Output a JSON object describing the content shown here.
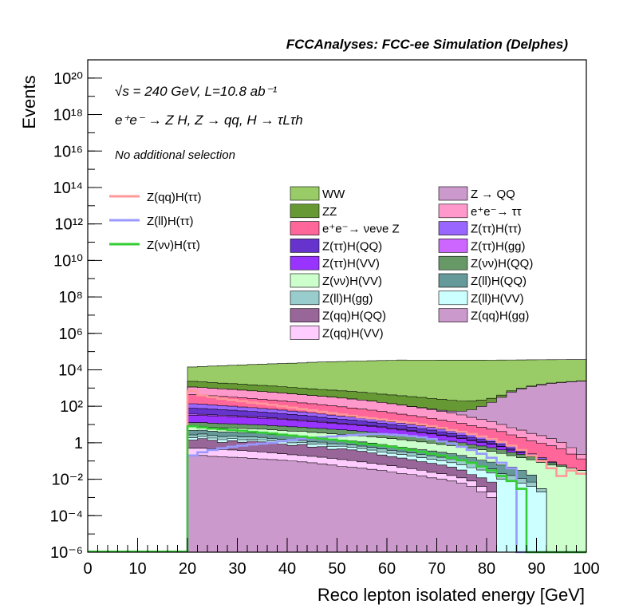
{
  "header": "FCCAnalyses: FCC-ee Simulation (Delphes)",
  "labels": {
    "energy_lumi": "√s = 240 GeV, L=10.8 ab⁻¹",
    "process": "e⁺e⁻ → Z H, Z → qq, H → τLτh",
    "selection": "No additional selection"
  },
  "chart_data": {
    "type": "stacked-histogram",
    "xlabel": "Reco lepton isolated energy [GeV]",
    "ylabel": "Events",
    "xlim": [
      0,
      100
    ],
    "ylim": [
      1e-06,
      1e+21
    ],
    "yscale": "log",
    "x_ticks": [
      0,
      10,
      20,
      30,
      40,
      50,
      60,
      70,
      80,
      90,
      100
    ],
    "y_ticks": [
      "10⁻⁶",
      "10⁻⁴",
      "10⁻²",
      "1",
      "10²",
      "10⁴",
      "10⁶",
      "10⁸",
      "10¹⁰",
      "10¹²",
      "10¹⁴",
      "10¹⁶",
      "10¹⁸",
      "10²⁰"
    ],
    "y_tick_values": [
      1e-06,
      0.0001,
      0.01,
      1,
      100.0,
      10000.0,
      1000000.0,
      100000000.0,
      10000000000.0,
      1000000000000.0,
      100000000000000.0,
      1e+16,
      1e+18,
      1e+20
    ],
    "bin_width": 2,
    "x_start": 20,
    "stack_layers": [
      {
        "name": "WW",
        "color": "#99cc66",
        "values": [
          12000.0,
          13000.0,
          14000.0,
          15000.0,
          16000.0,
          17000.0,
          18000.0,
          19000.0,
          20000.0,
          21000.0,
          22000.0,
          23000.0,
          25000.0,
          26000.0,
          27000.0,
          28000.0,
          29000.0,
          30000.0,
          31000.0,
          32000.0,
          33000.0,
          34000.0,
          34000.0,
          34000.0,
          34000.0,
          34000.0,
          34000.0,
          34000.0,
          34000.0,
          34000.0,
          34000.0,
          34000.0,
          34000.0,
          34000.0,
          34000.0,
          34000.0,
          34000.0,
          34000.0,
          34000.0,
          34000.0
        ]
      },
      {
        "name": "ZZ",
        "color": "#669933",
        "values": [
          1200.0,
          1100.0,
          1000.0,
          950,
          900,
          850,
          800,
          750,
          700,
          650,
          600,
          560,
          520,
          480,
          450,
          420,
          390,
          360,
          330,
          300,
          280,
          260,
          240,
          220,
          200,
          180,
          160,
          140,
          130,
          120,
          110,
          100,
          95,
          90,
          85,
          80,
          75,
          70,
          65,
          60
        ]
      },
      {
        "name": "Z → QQ",
        "color": "#cc99cc",
        "values": [
          2,
          2,
          2,
          2,
          2,
          2,
          2,
          2,
          2,
          2,
          2,
          2,
          2,
          2,
          2,
          2,
          2,
          2,
          2,
          2,
          2,
          2,
          3,
          4,
          5,
          8,
          12,
          20,
          40,
          80,
          150,
          300,
          600,
          900,
          1200,
          1500,
          1800,
          2000,
          2200,
          2400
        ]
      },
      {
        "name": "e⁺e⁻→ ττ",
        "color": "#ff99cc",
        "values": [
          700,
          650,
          600,
          560,
          520,
          480,
          440,
          400,
          370,
          340,
          310,
          280,
          250,
          230,
          210,
          190,
          170,
          150,
          130,
          110,
          95,
          80,
          65,
          55,
          45,
          35,
          28,
          22,
          16,
          12,
          9,
          6,
          4,
          3,
          2,
          1.5,
          1,
          0.6,
          0.3,
          0.1
        ]
      },
      {
        "name": "e⁺e⁻→ νeνe Z",
        "color": "#ff6699",
        "values": [
          300,
          280,
          260,
          240,
          220,
          200,
          180,
          165,
          150,
          135,
          120,
          105,
          95,
          85,
          75,
          65,
          55,
          48,
          42,
          36,
          30,
          25,
          21,
          18,
          15,
          12,
          10,
          8,
          6,
          5,
          4,
          3,
          2,
          1.5,
          1,
          0.8,
          0.6,
          0.4,
          0.2,
          0.1
        ]
      },
      {
        "name": "Z(ττ)H(ττ)",
        "color": "#9966ff",
        "values": [
          60,
          55,
          50,
          45,
          40,
          36,
          32,
          28,
          25,
          22,
          19,
          17,
          15,
          13,
          11,
          9,
          8,
          7,
          6,
          5,
          4,
          3.5,
          3,
          2.5,
          2,
          1.6,
          1.2,
          1,
          0.8,
          0.6,
          0.4,
          0.3,
          0.2,
          0.1,
          0.05,
          0.03,
          0.01,
          0,
          0,
          0
        ]
      },
      {
        "name": "Z(ττ)H(QQ)",
        "color": "#6633cc",
        "values": [
          40,
          38,
          35,
          32,
          30,
          27,
          25,
          22,
          20,
          18,
          16,
          14,
          12,
          10,
          9,
          8,
          7,
          6,
          5,
          4,
          3.5,
          3,
          2.5,
          2,
          1.6,
          1.3,
          1,
          0.8,
          0.6,
          0.4,
          0.3,
          0.2,
          0.1,
          0.05,
          0.02,
          0,
          0,
          0,
          0,
          0
        ]
      },
      {
        "name": "Z(ττ)H(gg)",
        "color": "#cc66ff",
        "values": [
          5,
          4.8,
          4.5,
          4.2,
          4,
          3.7,
          3.4,
          3.1,
          2.8,
          2.5,
          2.2,
          2,
          1.8,
          1.6,
          1.4,
          1.2,
          1,
          0.9,
          0.8,
          0.7,
          0.6,
          0.5,
          0.4,
          0.3,
          0.25,
          0.2,
          0.15,
          0.1,
          0.08,
          0.06,
          0.04,
          0.02,
          0.01,
          0,
          0,
          0,
          0,
          0,
          0,
          0
        ]
      },
      {
        "name": "Z(ττ)H(VV)",
        "color": "#9933ff",
        "values": [
          20,
          19,
          18,
          17,
          16,
          15,
          14,
          13,
          12,
          11,
          10,
          9,
          8,
          7,
          6,
          5.5,
          5,
          4.5,
          4,
          3.5,
          3,
          2.5,
          2,
          1.7,
          1.4,
          1.1,
          0.9,
          0.7,
          0.5,
          0.4,
          0.3,
          0.2,
          0.1,
          0.05,
          0,
          0,
          0,
          0,
          0,
          0
        ]
      },
      {
        "name": "Z(νν)H(QQ)",
        "color": "#669966",
        "values": [
          5,
          5,
          4.8,
          4.6,
          4.4,
          4.2,
          4,
          3.8,
          3.6,
          3.4,
          3.2,
          3,
          2.8,
          2.6,
          2.4,
          2.2,
          2,
          1.8,
          1.6,
          1.4,
          1.2,
          1,
          0.9,
          0.8,
          0.7,
          0.6,
          0.5,
          0.4,
          0.3,
          0.25,
          0.2,
          0.15,
          0.1,
          0.08,
          0.06,
          0.04,
          0.02,
          0.01,
          0,
          0
        ]
      },
      {
        "name": "Z(νν)H(VV)",
        "color": "#ccffcc",
        "values": [
          3,
          2.9,
          2.8,
          2.7,
          2.6,
          2.5,
          2.4,
          2.3,
          2.2,
          2.1,
          2,
          1.9,
          1.8,
          1.7,
          1.6,
          1.5,
          1.4,
          1.3,
          1.2,
          1.1,
          1,
          0.9,
          0.8,
          0.7,
          0.6,
          0.5,
          0.45,
          0.4,
          0.35,
          0.3,
          0.25,
          0.2,
          0.15,
          0.12,
          0.1,
          0.08,
          0.06,
          0.05,
          0.04,
          0.03
        ]
      },
      {
        "name": "Z(ll)H(QQ)",
        "color": "#669999",
        "values": [
          2,
          1.9,
          1.8,
          1.7,
          1.6,
          1.5,
          1.4,
          1.3,
          1.2,
          1.1,
          1,
          0.9,
          0.8,
          0.7,
          0.6,
          0.55,
          0.5,
          0.45,
          0.4,
          0.35,
          0.3,
          0.25,
          0.2,
          0.18,
          0.16,
          0.14,
          0.12,
          0.1,
          0.08,
          0.06,
          0.05,
          0.04,
          0.03,
          0.02,
          0.01,
          0,
          0,
          0,
          0,
          0
        ]
      },
      {
        "name": "Z(ll)H(gg)",
        "color": "#99cccc",
        "values": [
          0.8,
          0.8,
          0.7,
          0.7,
          0.6,
          0.6,
          0.5,
          0.5,
          0.4,
          0.4,
          0.35,
          0.3,
          0.3,
          0.25,
          0.25,
          0.2,
          0.2,
          0.18,
          0.16,
          0.14,
          0.12,
          0.1,
          0.09,
          0.08,
          0.07,
          0.06,
          0.05,
          0.04,
          0.03,
          0.02,
          0.015,
          0.01,
          0.008,
          0.005,
          0.003,
          0.001,
          0,
          0,
          0,
          0
        ]
      },
      {
        "name": "Z(ll)H(VV)",
        "color": "#ccffff",
        "values": [
          0.5,
          0.5,
          0.45,
          0.45,
          0.4,
          0.4,
          0.35,
          0.35,
          0.3,
          0.3,
          0.28,
          0.26,
          0.24,
          0.22,
          0.2,
          0.18,
          0.16,
          0.14,
          0.12,
          0.1,
          0.09,
          0.08,
          0.07,
          0.06,
          0.05,
          0.04,
          0.035,
          0.03,
          0.025,
          0.02,
          0.015,
          0.01,
          0.008,
          0.006,
          0.004,
          0.002,
          0,
          0,
          0,
          0
        ]
      },
      {
        "name": "Z(qq)H(QQ)",
        "color": "#996699",
        "values": [
          0.9,
          1.2,
          0.9,
          0.6,
          0.9,
          0.7,
          0.9,
          0.8,
          0.7,
          0.6,
          0.5,
          0.6,
          0.4,
          0.45,
          0.3,
          0.35,
          0.3,
          0.25,
          0.2,
          0.15,
          0.12,
          0.1,
          0.08,
          0.06,
          0.05,
          0.04,
          0.03,
          0.02,
          0.01,
          0.008,
          0.005,
          0,
          0,
          0,
          0,
          0,
          0,
          0,
          0,
          0
        ]
      },
      {
        "name": "Z(qq)H(VV)",
        "color": "#ffccff",
        "values": [
          0.3,
          0.3,
          0.28,
          0.26,
          0.24,
          0.22,
          0.2,
          0.18,
          0.16,
          0.14,
          0.12,
          0.11,
          0.1,
          0.09,
          0.08,
          0.07,
          0.06,
          0.05,
          0.04,
          0.035,
          0.03,
          0.025,
          0.02,
          0.016,
          0.012,
          0.01,
          0.008,
          0.006,
          0.004,
          0.002,
          0.001,
          0,
          0,
          0,
          0,
          0,
          0,
          0,
          0,
          0
        ]
      },
      {
        "name": "Z(qq)H(gg)",
        "color": "#cc99cc",
        "values": [
          0.2,
          0.2,
          0.18,
          0.17,
          0.16,
          0.15,
          0.14,
          0.13,
          0.12,
          0.11,
          0.1,
          0.09,
          0.08,
          0.07,
          0.06,
          0.05,
          0.045,
          0.04,
          0.035,
          0.03,
          0.025,
          0.02,
          0.018,
          0.015,
          0.012,
          0.01,
          0.008,
          0.006,
          0.004,
          0.002,
          0.001,
          0,
          0,
          0,
          0,
          0,
          0,
          0,
          0,
          0
        ]
      }
    ],
    "signal_lines": [
      {
        "name": "Z(qq)H(ττ)",
        "color": "#ff9999",
        "values": [
          700,
          400,
          320,
          260,
          220,
          190,
          160,
          140,
          120,
          100,
          85,
          70,
          60,
          50,
          42,
          35,
          30,
          25,
          22,
          19,
          16,
          14,
          12,
          10,
          8,
          6.5,
          5,
          4,
          3,
          2.2,
          1.6,
          1.1,
          0.7,
          0.4,
          0.2,
          0.1,
          0.04,
          0.015,
          0.03,
          0.02
        ]
      },
      {
        "name": "Z(ll)H(ττ)",
        "color": "#9999ff",
        "values": [
          0.2,
          0.3,
          0.4,
          0.5,
          0.6,
          0.7,
          0.8,
          0.9,
          1.0,
          1.2,
          1.4,
          1.6,
          1.8,
          2.0,
          2.2,
          2.4,
          2.6,
          2.8,
          3.0,
          3.0,
          2.8,
          2.6,
          2.3,
          2.0,
          1.6,
          1.2,
          0.9,
          0.6,
          0.4,
          0.25,
          0.15,
          0.08,
          0.04,
          0,
          0,
          0,
          0,
          0,
          0,
          0
        ]
      },
      {
        "name": "Z(νν)H(ττ)",
        "color": "#33cc33",
        "values": [
          8,
          7,
          6,
          5.5,
          5,
          4.5,
          4,
          3.6,
          3.2,
          2.8,
          2.5,
          2.2,
          1.9,
          1.7,
          1.5,
          1.3,
          1.1,
          0.9,
          0.8,
          0.7,
          0.6,
          0.5,
          0.4,
          0.32,
          0.25,
          0.2,
          0.15,
          0.11,
          0.08,
          0.05,
          0.03,
          0.015,
          0.008,
          0.003,
          0,
          0,
          0,
          0,
          0,
          0
        ]
      }
    ],
    "legend_left": [
      "Z(qq)H(ττ)",
      "Z(ll)H(ττ)",
      "Z(νν)H(ττ)"
    ],
    "legend_mid": [
      "WW",
      "ZZ",
      "e⁺e⁻→ νeνe Z",
      "Z(ττ)H(QQ)",
      "Z(ττ)H(VV)",
      "Z(νν)H(VV)",
      "Z(ll)H(gg)",
      "Z(qq)H(QQ)",
      "Z(qq)H(VV)"
    ],
    "legend_right": [
      "Z → QQ",
      "e⁺e⁻→ ττ",
      "Z(ττ)H(ττ)",
      "Z(ττ)H(gg)",
      "Z(νν)H(QQ)",
      "Z(ll)H(QQ)",
      "Z(ll)H(VV)",
      "Z(qq)H(gg)"
    ]
  }
}
